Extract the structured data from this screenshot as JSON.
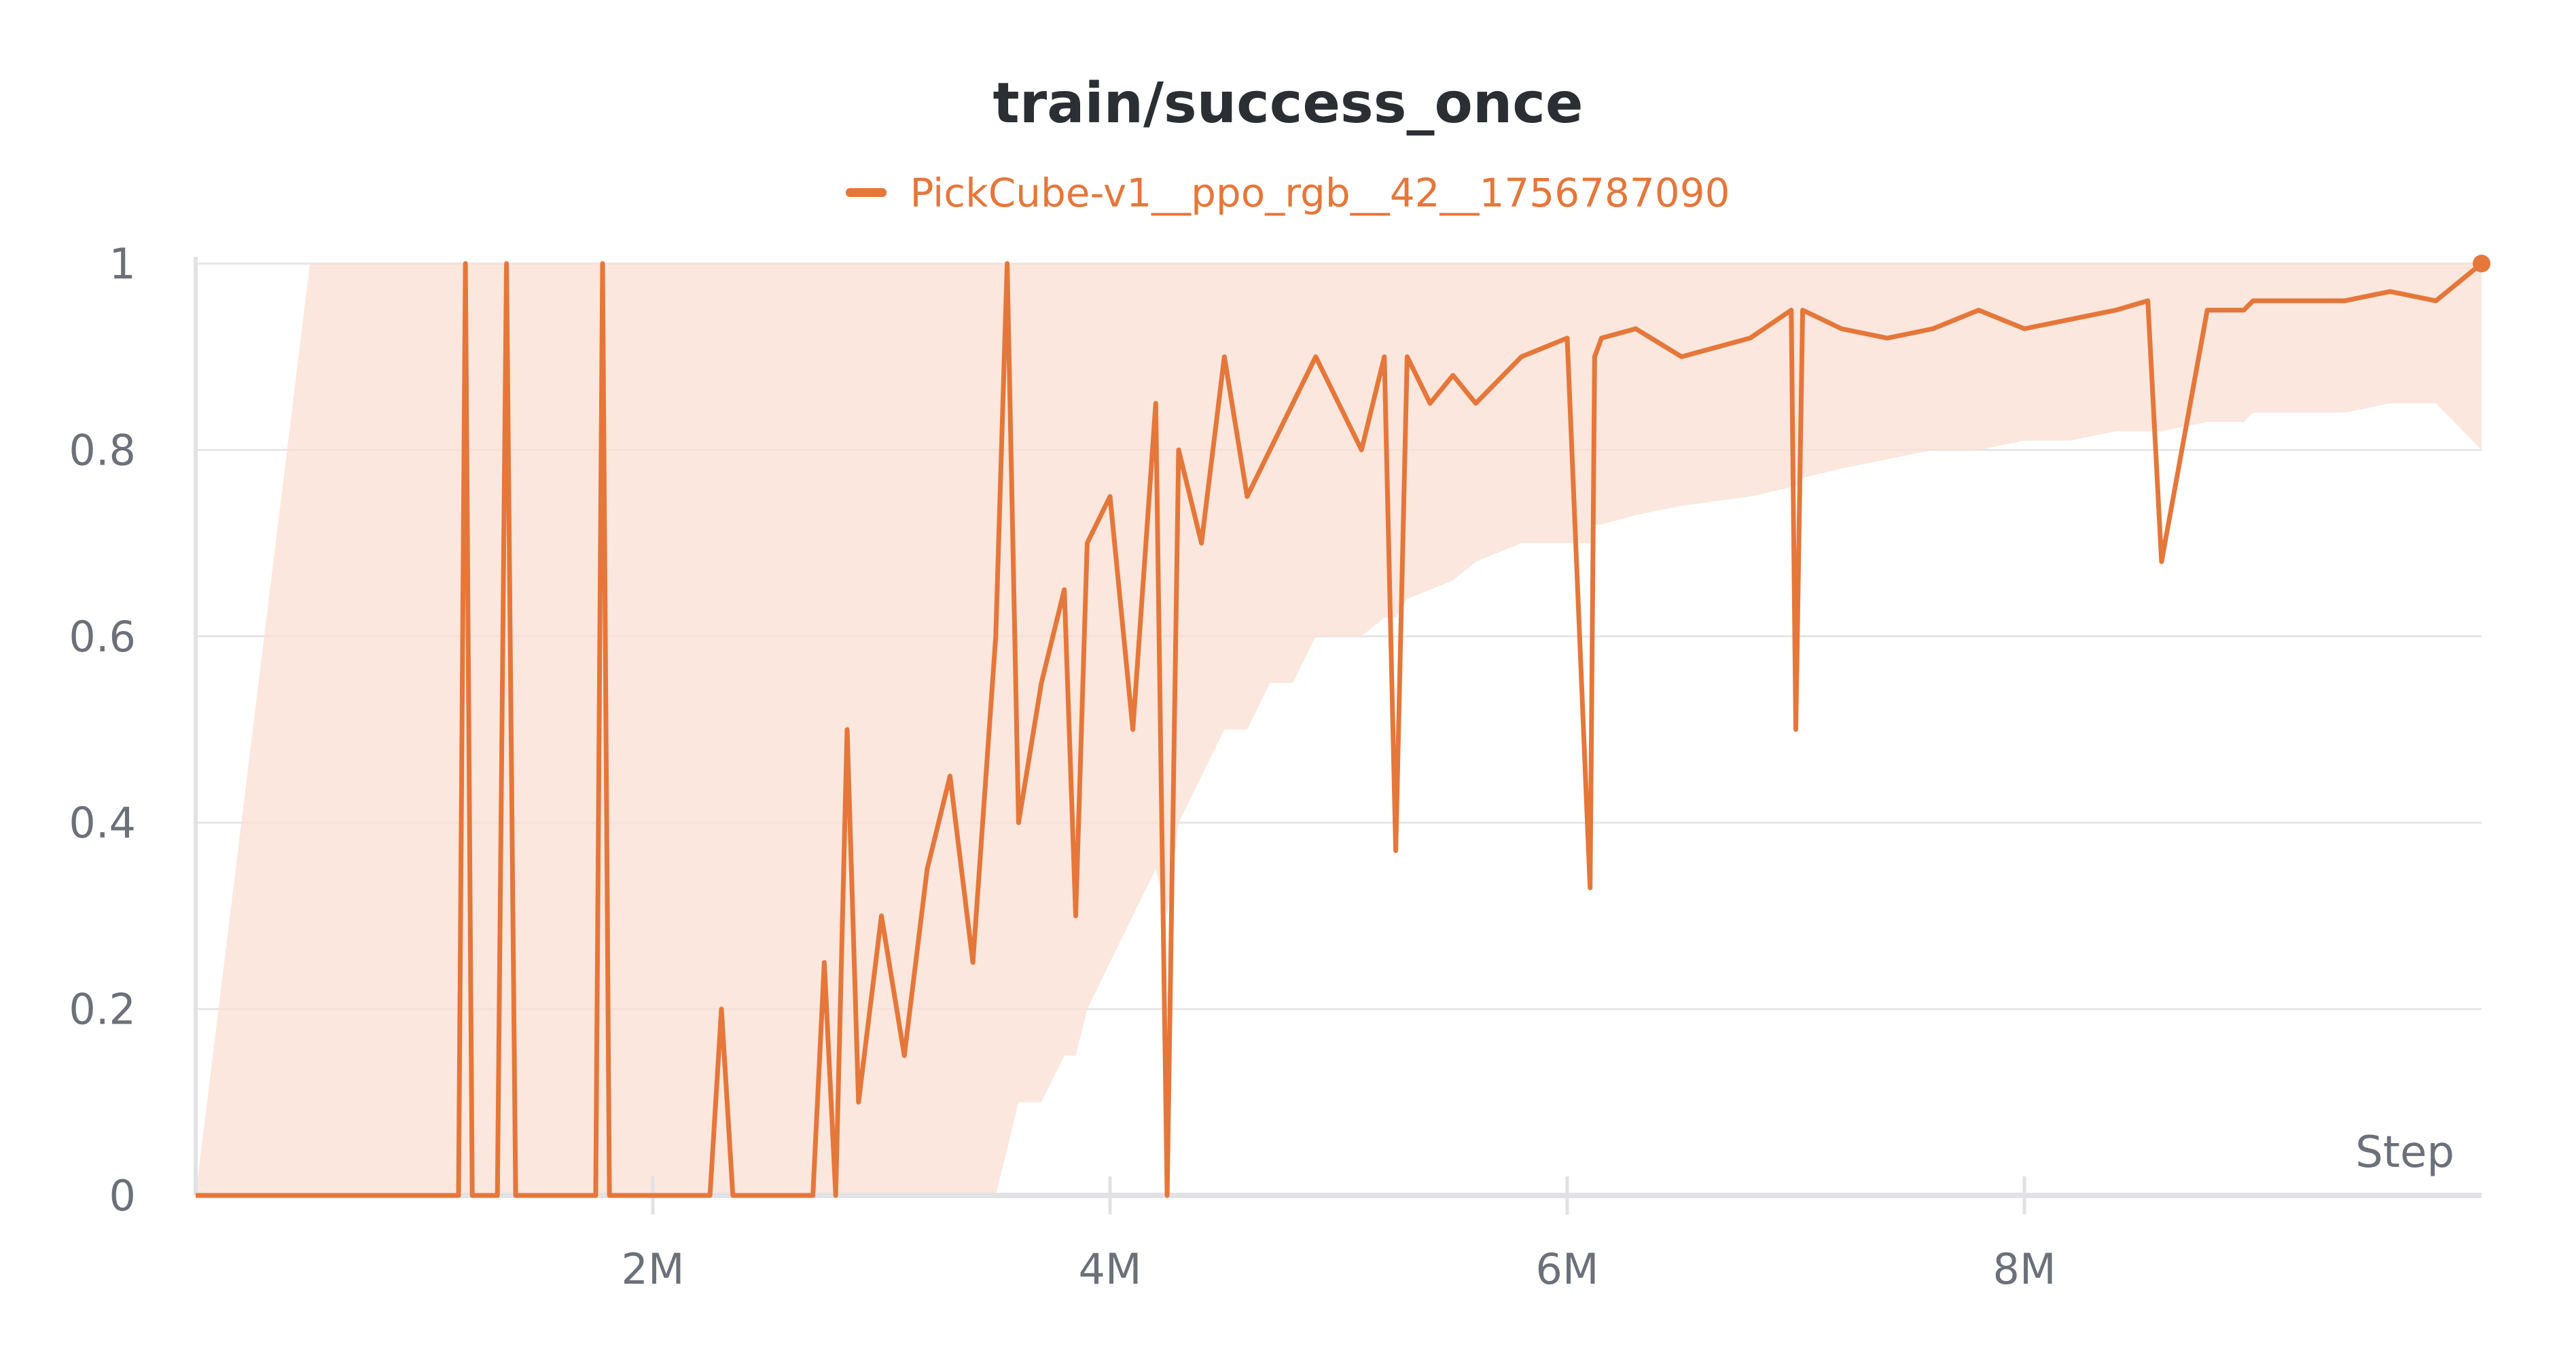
{
  "chart_data": {
    "type": "line",
    "title": "train/success_once",
    "xlabel": "Step",
    "ylabel": "",
    "xlim": [
      0,
      10000000
    ],
    "ylim": [
      0,
      1
    ],
    "grid": true,
    "legend_position": "top-center",
    "x_ticks": [
      {
        "value": 2000000,
        "label": "2M"
      },
      {
        "value": 4000000,
        "label": "4M"
      },
      {
        "value": 6000000,
        "label": "6M"
      },
      {
        "value": 8000000,
        "label": "8M"
      }
    ],
    "y_ticks": [
      {
        "value": 0,
        "label": "0"
      },
      {
        "value": 0.2,
        "label": "0.2"
      },
      {
        "value": 0.4,
        "label": "0.4"
      },
      {
        "value": 0.6,
        "label": "0.6"
      },
      {
        "value": 0.8,
        "label": "0.8"
      },
      {
        "value": 1,
        "label": "1"
      }
    ],
    "colors": {
      "line": "#e5773a",
      "band": "#f9dfd1",
      "grid": "#e6e6e8",
      "axis": "#e2e2e5",
      "tick_text": "#6b7079",
      "title": "#2b2e33"
    },
    "series": [
      {
        "name": "PickCube-v1__ppo_rgb__42__1756787090",
        "color": "#e5773a",
        "x": [
          0,
          500000,
          1000000,
          1150000,
          1180000,
          1210000,
          1320000,
          1360000,
          1400000,
          1600000,
          1750000,
          1780000,
          1810000,
          2000000,
          2250000,
          2300000,
          2350000,
          2500000,
          2700000,
          2750000,
          2800000,
          2850000,
          2900000,
          3000000,
          3100000,
          3200000,
          3300000,
          3400000,
          3500000,
          3550000,
          3600000,
          3700000,
          3800000,
          3850000,
          3900000,
          4000000,
          4100000,
          4200000,
          4250000,
          4300000,
          4400000,
          4500000,
          4600000,
          4700000,
          4800000,
          4900000,
          5000000,
          5100000,
          5200000,
          5250000,
          5300000,
          5400000,
          5500000,
          5600000,
          5800000,
          6000000,
          6100000,
          6120000,
          6150000,
          6300000,
          6500000,
          6800000,
          6980000,
          7000000,
          7030000,
          7200000,
          7400000,
          7600000,
          7800000,
          8000000,
          8200000,
          8400000,
          8540000,
          8600000,
          8800000,
          8960000,
          9000000,
          9200000,
          9400000,
          9600000,
          9800000,
          10000000
        ],
        "y": [
          0,
          0,
          0,
          0,
          1,
          0,
          0,
          1,
          0,
          0,
          0,
          1,
          0,
          0,
          0,
          0.2,
          0,
          0,
          0,
          0.25,
          0,
          0.5,
          0.1,
          0.3,
          0.15,
          0.35,
          0.45,
          0.25,
          0.6,
          1,
          0.4,
          0.55,
          0.65,
          0.3,
          0.7,
          0.75,
          0.5,
          0.85,
          0,
          0.8,
          0.7,
          0.9,
          0.75,
          0.8,
          0.85,
          0.9,
          0.85,
          0.8,
          0.9,
          0.37,
          0.9,
          0.85,
          0.88,
          0.85,
          0.9,
          0.92,
          0.33,
          0.9,
          0.92,
          0.93,
          0.9,
          0.92,
          0.95,
          0.5,
          0.95,
          0.93,
          0.92,
          0.93,
          0.95,
          0.93,
          0.94,
          0.95,
          0.96,
          0.68,
          0.95,
          0.95,
          0.96,
          0.96,
          0.96,
          0.97,
          0.96,
          1
        ],
        "band_lower": [
          0,
          0,
          0,
          0,
          0,
          0,
          0,
          0,
          0,
          0,
          0,
          0,
          0,
          0,
          0,
          0,
          0,
          0,
          0,
          0,
          0,
          0,
          0,
          0,
          0,
          0,
          0,
          0,
          0,
          0.05,
          0.1,
          0.1,
          0.15,
          0.15,
          0.2,
          0.25,
          0.3,
          0.35,
          0.3,
          0.4,
          0.45,
          0.5,
          0.5,
          0.55,
          0.55,
          0.6,
          0.6,
          0.6,
          0.62,
          0.62,
          0.64,
          0.65,
          0.66,
          0.68,
          0.7,
          0.7,
          0.7,
          0.72,
          0.72,
          0.73,
          0.74,
          0.75,
          0.76,
          0.76,
          0.77,
          0.78,
          0.79,
          0.8,
          0.8,
          0.81,
          0.81,
          0.82,
          0.82,
          0.82,
          0.83,
          0.83,
          0.84,
          0.84,
          0.84,
          0.85,
          0.85,
          0.8
        ],
        "band_upper": [
          0,
          1,
          1,
          1,
          1,
          1,
          1,
          1,
          1,
          1,
          1,
          1,
          1,
          1,
          1,
          1,
          1,
          1,
          1,
          1,
          1,
          1,
          1,
          1,
          1,
          1,
          1,
          1,
          1,
          1,
          1,
          1,
          1,
          1,
          1,
          1,
          1,
          1,
          1,
          1,
          1,
          1,
          1,
          1,
          1,
          1,
          1,
          1,
          1,
          1,
          1,
          1,
          1,
          1,
          1,
          1,
          1,
          1,
          1,
          1,
          1,
          1,
          1,
          1,
          1,
          1,
          1,
          1,
          1,
          1,
          1,
          1,
          1,
          1,
          1,
          1,
          1,
          1,
          1,
          1,
          1,
          1
        ]
      }
    ]
  }
}
